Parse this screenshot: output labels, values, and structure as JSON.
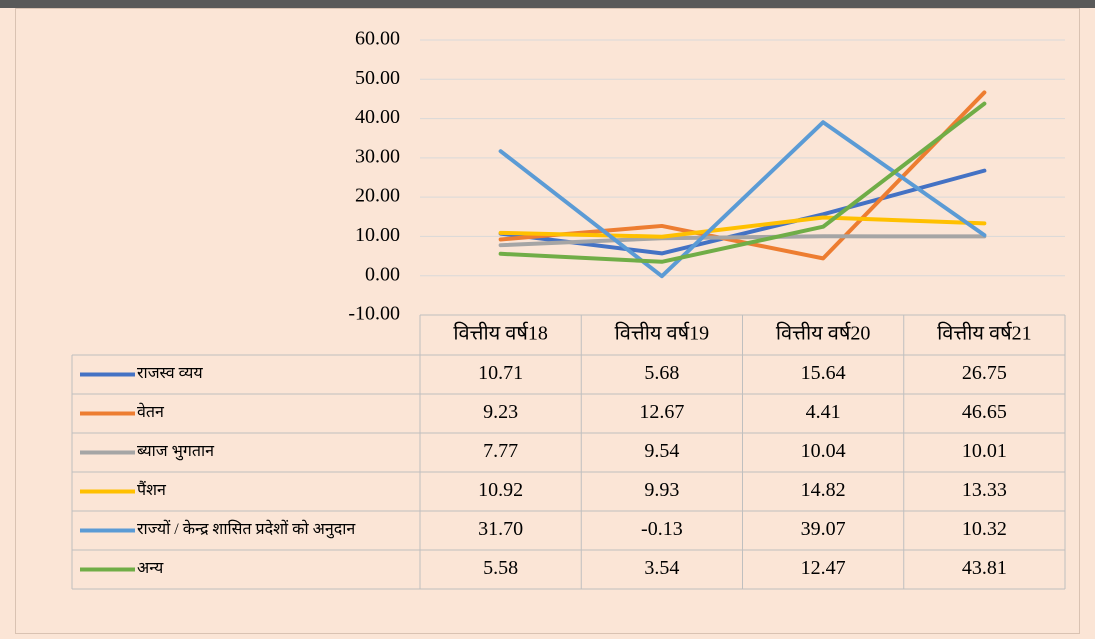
{
  "chart_data": {
    "type": "line",
    "categories": [
      "वित्तीय वर्ष18",
      "वित्तीय वर्ष19",
      "वित्तीय वर्ष20",
      "वित्तीय वर्ष21"
    ],
    "series": [
      {
        "name": "राजस्व व्यय",
        "color": "#4472c4",
        "values": [
          10.71,
          5.68,
          15.64,
          26.75
        ]
      },
      {
        "name": "वेतन",
        "color": "#ed7d31",
        "values": [
          9.23,
          12.67,
          4.41,
          46.65
        ]
      },
      {
        "name": "ब्याज भुगतान",
        "color": "#a5a5a5",
        "values": [
          7.77,
          9.54,
          10.04,
          10.01
        ]
      },
      {
        "name": "पैंशन",
        "color": "#ffc000",
        "values": [
          10.92,
          9.93,
          14.82,
          13.33
        ]
      },
      {
        "name": "राज्यों / केन्द्र शासित प्रदेशों को अनुदान",
        "color": "#5b9bd5",
        "values": [
          31.7,
          -0.13,
          39.07,
          10.32
        ],
        "value_labels": [
          "31.70",
          "-0.13",
          "39.07",
          "10.32"
        ]
      },
      {
        "name": "अन्य",
        "color": "#70ad47",
        "values": [
          5.58,
          3.54,
          12.47,
          43.81
        ]
      }
    ],
    "ylim": [
      -10,
      60
    ],
    "yticks": [
      {
        "value": -10,
        "label": "-10.00"
      },
      {
        "value": 0,
        "label": "0.00"
      },
      {
        "value": 10,
        "label": "10.00"
      },
      {
        "value": 20,
        "label": "20.00"
      },
      {
        "value": 30,
        "label": "30.00"
      },
      {
        "value": 40,
        "label": "40.00"
      },
      {
        "value": 50,
        "label": "50.00"
      },
      {
        "value": 60,
        "label": "60.00"
      }
    ],
    "grid": true
  }
}
